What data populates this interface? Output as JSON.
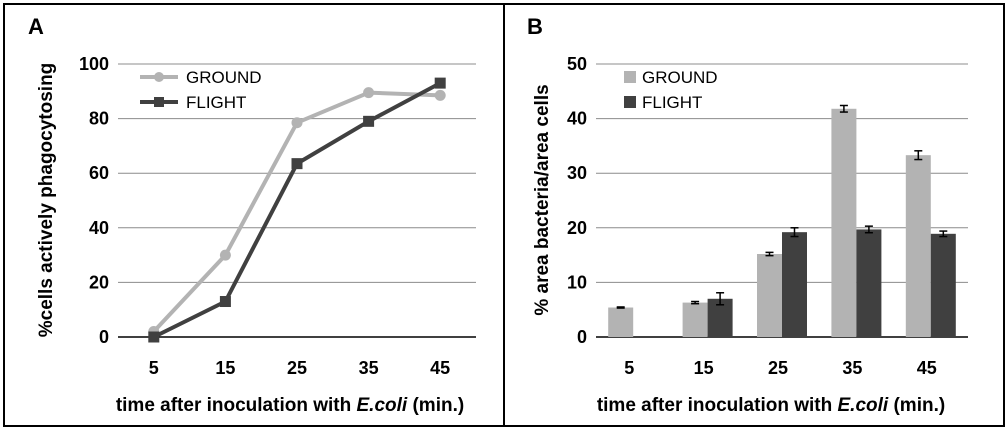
{
  "figure": {
    "colors": {
      "ground": "#b3b3b3",
      "flight": "#404040",
      "grid": "#8c8c8c",
      "frame": "#000000"
    }
  },
  "chart_data": [
    {
      "panel": "A",
      "type": "line",
      "categories": [
        "5",
        "15",
        "25",
        "35",
        "45"
      ],
      "series": [
        {
          "name": "GROUND",
          "marker": "circle",
          "values": [
            2,
            30,
            78.5,
            89.5,
            88.5
          ]
        },
        {
          "name": "FLIGHT",
          "marker": "square",
          "values": [
            0,
            13,
            63.5,
            79,
            93
          ]
        }
      ],
      "ylabel": "%cells actively phagocytosing",
      "xlabel": {
        "prefix": "time after inoculation with ",
        "italic": "E.coli",
        "suffix": " (min.)"
      },
      "yticks": [
        "0",
        "20",
        "40",
        "60",
        "80",
        "100"
      ],
      "ylim": [
        0,
        100
      ],
      "grid": true,
      "legend_position": "top-left"
    },
    {
      "panel": "B",
      "type": "bar",
      "categories": [
        "5",
        "15",
        "25",
        "35",
        "45"
      ],
      "series": [
        {
          "name": "GROUND",
          "values": [
            5.4,
            6.3,
            15.2,
            41.8,
            33.3
          ],
          "errors": [
            0.1,
            0.2,
            0.3,
            0.6,
            0.8
          ]
        },
        {
          "name": "FLIGHT",
          "values": [
            null,
            7.0,
            19.2,
            19.7,
            18.9
          ],
          "errors": [
            null,
            1.1,
            0.8,
            0.6,
            0.5
          ]
        }
      ],
      "ylabel": "% area bacteria/area cells",
      "xlabel": {
        "prefix": "time after inoculation with ",
        "italic": "E.coli",
        "suffix": " (min.)"
      },
      "yticks": [
        "0",
        "10",
        "20",
        "30",
        "40",
        "50"
      ],
      "ylim": [
        0,
        50
      ],
      "grid": true,
      "legend_position": "top-left",
      "error_bars": true
    }
  ]
}
